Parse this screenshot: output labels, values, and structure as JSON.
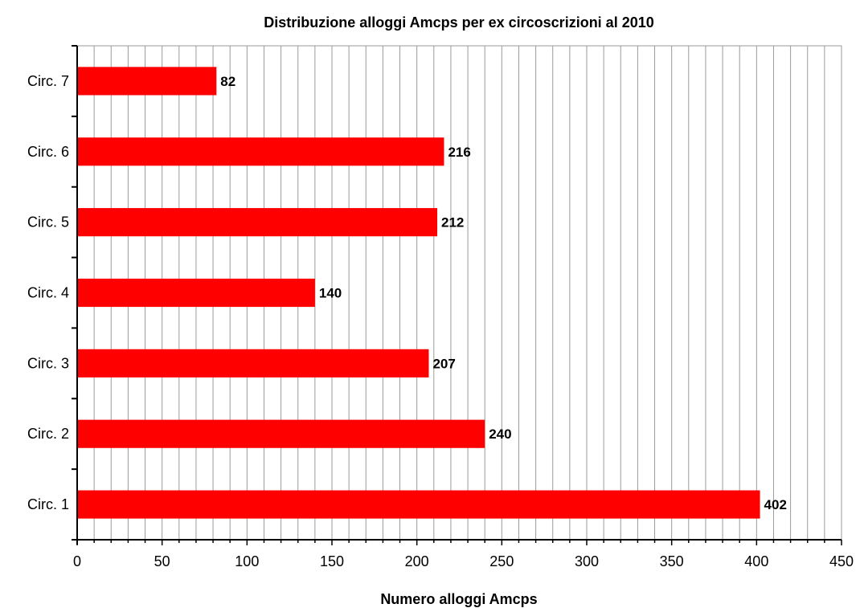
{
  "chart_data": {
    "type": "bar",
    "orientation": "horizontal",
    "title": "Distribuzione alloggi Amcps per ex circoscrizioni al 2010",
    "xlabel": "Numero alloggi Amcps",
    "ylabel": "",
    "categories": [
      "Circ. 1",
      "Circ. 2",
      "Circ. 3",
      "Circ. 4",
      "Circ. 5",
      "Circ. 6",
      "Circ. 7"
    ],
    "values": [
      402,
      240,
      207,
      140,
      212,
      216,
      82
    ],
    "data_labels": [
      "402",
      "240",
      "207",
      "140",
      "212",
      "216",
      "82"
    ],
    "xlim": [
      0,
      450
    ],
    "major_ticks": [
      0,
      50,
      100,
      150,
      200,
      250,
      300,
      350,
      400,
      450
    ],
    "tick_labels": [
      "0",
      "50",
      "100",
      "150",
      "200",
      "250",
      "300",
      "350",
      "400",
      "450"
    ],
    "minor_tick_step": 10,
    "grid": true,
    "legend": "none",
    "bar_color": "#ff0000",
    "grid_color": "#9a9a9a"
  }
}
